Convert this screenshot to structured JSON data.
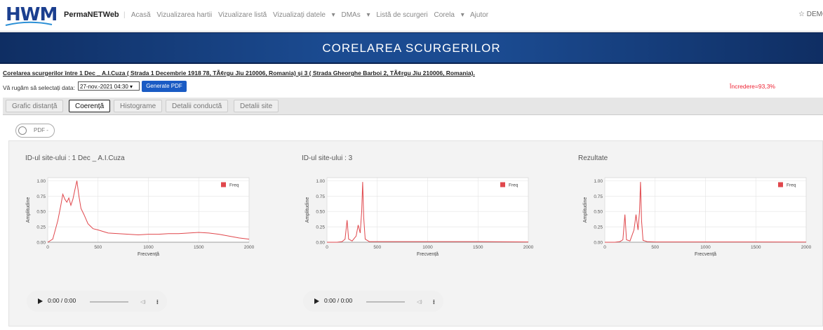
{
  "nav": {
    "logo": "HWM",
    "brand": "PermaNETWeb",
    "links": [
      "Acasă",
      "Vizualizarea hartii",
      "Vizualizare listă",
      "Vizualizați datele",
      "DMAs",
      "Listă de scurgeri",
      "Corela",
      "Ajutor"
    ],
    "user": "DEMO"
  },
  "banner": {
    "title": "CORELAREA SCURGERILOR"
  },
  "subtitle": "Corelarea scurgerilor între 1 Dec _ A.I.Cuza ( Strada 1 Decembrie 1918 78, TÃ¢rgu Jiu 210006, Romania) și 3 ( Strada Gheorghe Barboi 2, TÃ¢rgu Jiu 210006, Romania).",
  "date_label": "Vă rugăm să selectați data:",
  "date_value": "27-nov.-2021 04:30",
  "generate_button": "Generate PDF",
  "confidence": "Încredere=93,3%",
  "tabs": [
    "Grafic distanță",
    "Coerență",
    "Histograme",
    "Detalii conductă",
    "Detalii site"
  ],
  "pdf_toggle": "PDF -",
  "audio_time": [
    "0:00 / 0:00",
    "0:00 / 0:00"
  ],
  "charts": [
    {
      "type": "line",
      "title": "ID-ul site-ului : 1 Dec _ A.I.Cuza",
      "xlabel": "Frecvență",
      "ylabel": "Amplitudine",
      "x": [
        0,
        50,
        100,
        130,
        150,
        170,
        190,
        210,
        230,
        250,
        270,
        290,
        310,
        330,
        360,
        400,
        450,
        500,
        600,
        700,
        800,
        900,
        1000,
        1100,
        1200,
        1300,
        1400,
        1500,
        1600,
        1700,
        1800,
        1900,
        2000
      ],
      "series": [
        {
          "name": "Freq",
          "color": "#e0474c",
          "values": [
            0,
            0.05,
            0.35,
            0.6,
            0.78,
            0.7,
            0.65,
            0.72,
            0.6,
            0.7,
            0.85,
            1.0,
            0.75,
            0.55,
            0.45,
            0.3,
            0.22,
            0.2,
            0.15,
            0.14,
            0.13,
            0.12,
            0.13,
            0.13,
            0.14,
            0.14,
            0.15,
            0.16,
            0.15,
            0.13,
            0.1,
            0.07,
            0.05
          ]
        }
      ],
      "xlim": [
        0,
        2000
      ],
      "ylim": [
        0,
        1.05
      ],
      "xticks": [
        0,
        500,
        1000,
        1500,
        2000
      ],
      "yticks": [
        {
          "value": 0,
          "label": "0.00"
        },
        {
          "value": 0.25,
          "label": "0.25"
        },
        {
          "value": 0.5,
          "label": "0.50"
        },
        {
          "value": 0.75,
          "label": "0.75"
        },
        {
          "value": 1,
          "label": "1.00"
        }
      ],
      "grid": true,
      "legend": "top-right"
    },
    {
      "type": "line",
      "title": "ID-ul site-ului : 3",
      "xlabel": "Frecvență",
      "ylabel": "Amplitudine",
      "x": [
        0,
        100,
        150,
        180,
        200,
        215,
        250,
        290,
        310,
        330,
        345,
        355,
        365,
        380,
        420,
        500,
        1000,
        1500,
        2000
      ],
      "series": [
        {
          "name": "Freq",
          "color": "#e0474c",
          "values": [
            0,
            0,
            0.01,
            0.05,
            0.36,
            0.05,
            0.02,
            0.1,
            0.28,
            0.15,
            0.5,
            0.98,
            0.4,
            0.05,
            0.01,
            0.01,
            0.01,
            0.01,
            0.005
          ]
        }
      ],
      "xlim": [
        0,
        2000
      ],
      "ylim": [
        0,
        1.05
      ],
      "xticks": [
        0,
        500,
        1000,
        1500,
        2000
      ],
      "yticks": [
        {
          "value": 0,
          "label": "0.00"
        },
        {
          "value": 0.25,
          "label": "0.25"
        },
        {
          "value": 0.5,
          "label": "0.50"
        },
        {
          "value": 0.75,
          "label": "0.75"
        },
        {
          "value": 1,
          "label": "1.00"
        }
      ],
      "grid": true,
      "legend": "top-right"
    },
    {
      "type": "line",
      "title": "Rezultate",
      "xlabel": "Frecvență",
      "ylabel": "Amplitudine",
      "x": [
        0,
        100,
        150,
        180,
        200,
        215,
        250,
        290,
        310,
        330,
        345,
        355,
        365,
        380,
        420,
        500,
        1000,
        1500,
        2000
      ],
      "series": [
        {
          "name": "Freq",
          "color": "#e0474c",
          "values": [
            0,
            0,
            0.01,
            0.04,
            0.45,
            0.04,
            0.02,
            0.2,
            0.45,
            0.2,
            0.5,
            0.98,
            0.35,
            0.03,
            0.01,
            0.005,
            0.005,
            0.005,
            0.003
          ]
        }
      ],
      "xlim": [
        0,
        2000
      ],
      "ylim": [
        0,
        1.05
      ],
      "xticks": [
        0,
        500,
        1000,
        1500,
        2000
      ],
      "yticks": [
        {
          "value": 0,
          "label": "0.00"
        },
        {
          "value": 0.25,
          "label": "0.25"
        },
        {
          "value": 0.5,
          "label": "0.50"
        },
        {
          "value": 0.75,
          "label": "0.75"
        },
        {
          "value": 1,
          "label": "1.00"
        }
      ],
      "grid": true,
      "legend": "top-right"
    }
  ]
}
